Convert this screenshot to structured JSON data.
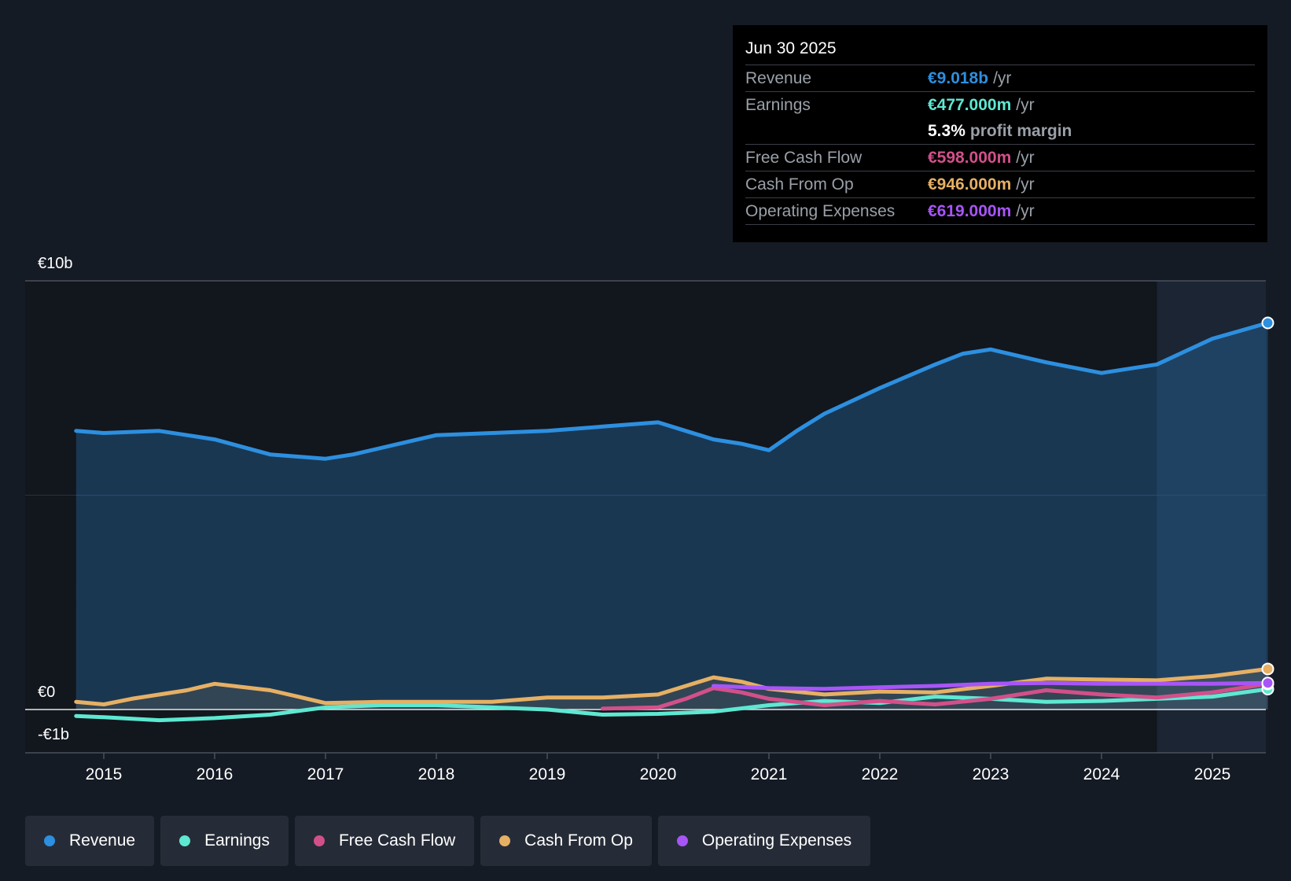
{
  "tooltip": {
    "date": "Jun 30 2025",
    "rows": [
      {
        "label": "Revenue",
        "value": "€9.018b",
        "unit": "/yr",
        "color": "#2d8fdf"
      },
      {
        "label": "Earnings",
        "value": "€477.000m",
        "unit": "/yr",
        "color": "#5ee8d2"
      },
      {
        "label": "",
        "value": "5.3%",
        "unit": "profit margin",
        "color": "#ffffff"
      },
      {
        "label": "Free Cash Flow",
        "value": "€598.000m",
        "unit": "/yr",
        "color": "#d2508a"
      },
      {
        "label": "Cash From Op",
        "value": "€946.000m",
        "unit": "/yr",
        "color": "#e6b064"
      },
      {
        "label": "Operating Expenses",
        "value": "€619.000m",
        "unit": "/yr",
        "color": "#a855f7"
      }
    ]
  },
  "legend": [
    {
      "label": "Revenue",
      "color": "#2d8fdf"
    },
    {
      "label": "Earnings",
      "color": "#5ee8d2"
    },
    {
      "label": "Free Cash Flow",
      "color": "#d2508a"
    },
    {
      "label": "Cash From Op",
      "color": "#e6b064"
    },
    {
      "label": "Operating Expenses",
      "color": "#a855f7"
    }
  ],
  "chart_data": {
    "type": "line",
    "title": "",
    "xlabel": "",
    "ylabel": "",
    "ylim": [
      -1,
      10
    ],
    "xlim": [
      2014.3,
      2025.5
    ],
    "forecast_region_start": 2024.5,
    "y_tick_labels": [
      {
        "value": 10,
        "label": "€10b"
      },
      {
        "value": 0,
        "label": "€0"
      },
      {
        "value": -1,
        "label": "-€1b"
      }
    ],
    "x_ticks": [
      2015,
      2016,
      2017,
      2018,
      2019,
      2020,
      2021,
      2022,
      2023,
      2024,
      2025
    ],
    "x_tick_labels": [
      "2015",
      "2016",
      "2017",
      "2018",
      "2019",
      "2020",
      "2021",
      "2022",
      "2023",
      "2024",
      "2025"
    ],
    "series": [
      {
        "name": "Revenue",
        "color": "#2d8fdf",
        "fill": true,
        "points": [
          [
            2014.75,
            6.5
          ],
          [
            2015.0,
            6.45
          ],
          [
            2015.5,
            6.5
          ],
          [
            2015.75,
            6.4
          ],
          [
            2016.0,
            6.3
          ],
          [
            2016.5,
            5.95
          ],
          [
            2016.75,
            5.9
          ],
          [
            2017.0,
            5.85
          ],
          [
            2017.25,
            5.95
          ],
          [
            2017.5,
            6.1
          ],
          [
            2018.0,
            6.4
          ],
          [
            2018.5,
            6.45
          ],
          [
            2019.0,
            6.5
          ],
          [
            2019.5,
            6.6
          ],
          [
            2020.0,
            6.7
          ],
          [
            2020.25,
            6.5
          ],
          [
            2020.5,
            6.3
          ],
          [
            2020.75,
            6.2
          ],
          [
            2021.0,
            6.05
          ],
          [
            2021.25,
            6.5
          ],
          [
            2021.5,
            6.9
          ],
          [
            2022.0,
            7.5
          ],
          [
            2022.5,
            8.05
          ],
          [
            2022.75,
            8.3
          ],
          [
            2023.0,
            8.4
          ],
          [
            2023.25,
            8.25
          ],
          [
            2023.5,
            8.1
          ],
          [
            2024.0,
            7.85
          ],
          [
            2024.25,
            7.95
          ],
          [
            2024.5,
            8.05
          ],
          [
            2024.75,
            8.35
          ],
          [
            2025.0,
            8.65
          ],
          [
            2025.5,
            9.018
          ]
        ]
      },
      {
        "name": "Earnings",
        "color": "#5ee8d2",
        "fill": false,
        "points": [
          [
            2014.75,
            -0.15
          ],
          [
            2015.0,
            -0.18
          ],
          [
            2015.5,
            -0.25
          ],
          [
            2016.0,
            -0.2
          ],
          [
            2016.5,
            -0.12
          ],
          [
            2017.0,
            0.05
          ],
          [
            2017.5,
            0.1
          ],
          [
            2018.0,
            0.1
          ],
          [
            2018.5,
            0.05
          ],
          [
            2019.0,
            0.0
          ],
          [
            2019.5,
            -0.12
          ],
          [
            2020.0,
            -0.1
          ],
          [
            2020.5,
            -0.05
          ],
          [
            2021.0,
            0.1
          ],
          [
            2021.5,
            0.2
          ],
          [
            2022.0,
            0.15
          ],
          [
            2022.5,
            0.3
          ],
          [
            2023.0,
            0.25
          ],
          [
            2023.5,
            0.18
          ],
          [
            2024.0,
            0.2
          ],
          [
            2024.5,
            0.25
          ],
          [
            2025.0,
            0.3
          ],
          [
            2025.5,
            0.477
          ]
        ]
      },
      {
        "name": "Free Cash Flow",
        "color": "#d2508a",
        "fill": false,
        "points": [
          [
            2019.5,
            0.02
          ],
          [
            2020.0,
            0.05
          ],
          [
            2020.25,
            0.25
          ],
          [
            2020.5,
            0.5
          ],
          [
            2020.75,
            0.4
          ],
          [
            2021.0,
            0.25
          ],
          [
            2021.5,
            0.1
          ],
          [
            2022.0,
            0.2
          ],
          [
            2022.5,
            0.12
          ],
          [
            2023.0,
            0.25
          ],
          [
            2023.5,
            0.45
          ],
          [
            2024.0,
            0.35
          ],
          [
            2024.5,
            0.28
          ],
          [
            2025.0,
            0.4
          ],
          [
            2025.5,
            0.598
          ]
        ]
      },
      {
        "name": "Cash From Op",
        "color": "#e6b064",
        "fill": false,
        "points": [
          [
            2014.75,
            0.18
          ],
          [
            2015.0,
            0.12
          ],
          [
            2015.25,
            0.25
          ],
          [
            2015.75,
            0.45
          ],
          [
            2016.0,
            0.6
          ],
          [
            2016.5,
            0.45
          ],
          [
            2016.75,
            0.3
          ],
          [
            2017.0,
            0.15
          ],
          [
            2017.5,
            0.18
          ],
          [
            2018.0,
            0.18
          ],
          [
            2018.5,
            0.18
          ],
          [
            2019.0,
            0.28
          ],
          [
            2019.5,
            0.28
          ],
          [
            2020.0,
            0.35
          ],
          [
            2020.25,
            0.55
          ],
          [
            2020.5,
            0.75
          ],
          [
            2020.75,
            0.65
          ],
          [
            2021.0,
            0.48
          ],
          [
            2021.5,
            0.35
          ],
          [
            2022.0,
            0.42
          ],
          [
            2022.5,
            0.4
          ],
          [
            2023.0,
            0.55
          ],
          [
            2023.5,
            0.72
          ],
          [
            2024.0,
            0.7
          ],
          [
            2024.5,
            0.68
          ],
          [
            2025.0,
            0.78
          ],
          [
            2025.5,
            0.946
          ]
        ]
      },
      {
        "name": "Operating Expenses",
        "color": "#a855f7",
        "fill": false,
        "points": [
          [
            2020.5,
            0.55
          ],
          [
            2021.0,
            0.5
          ],
          [
            2021.5,
            0.48
          ],
          [
            2022.0,
            0.52
          ],
          [
            2022.5,
            0.55
          ],
          [
            2023.0,
            0.6
          ],
          [
            2023.5,
            0.62
          ],
          [
            2024.0,
            0.6
          ],
          [
            2024.5,
            0.6
          ],
          [
            2025.0,
            0.6
          ],
          [
            2025.5,
            0.619
          ]
        ]
      }
    ]
  }
}
